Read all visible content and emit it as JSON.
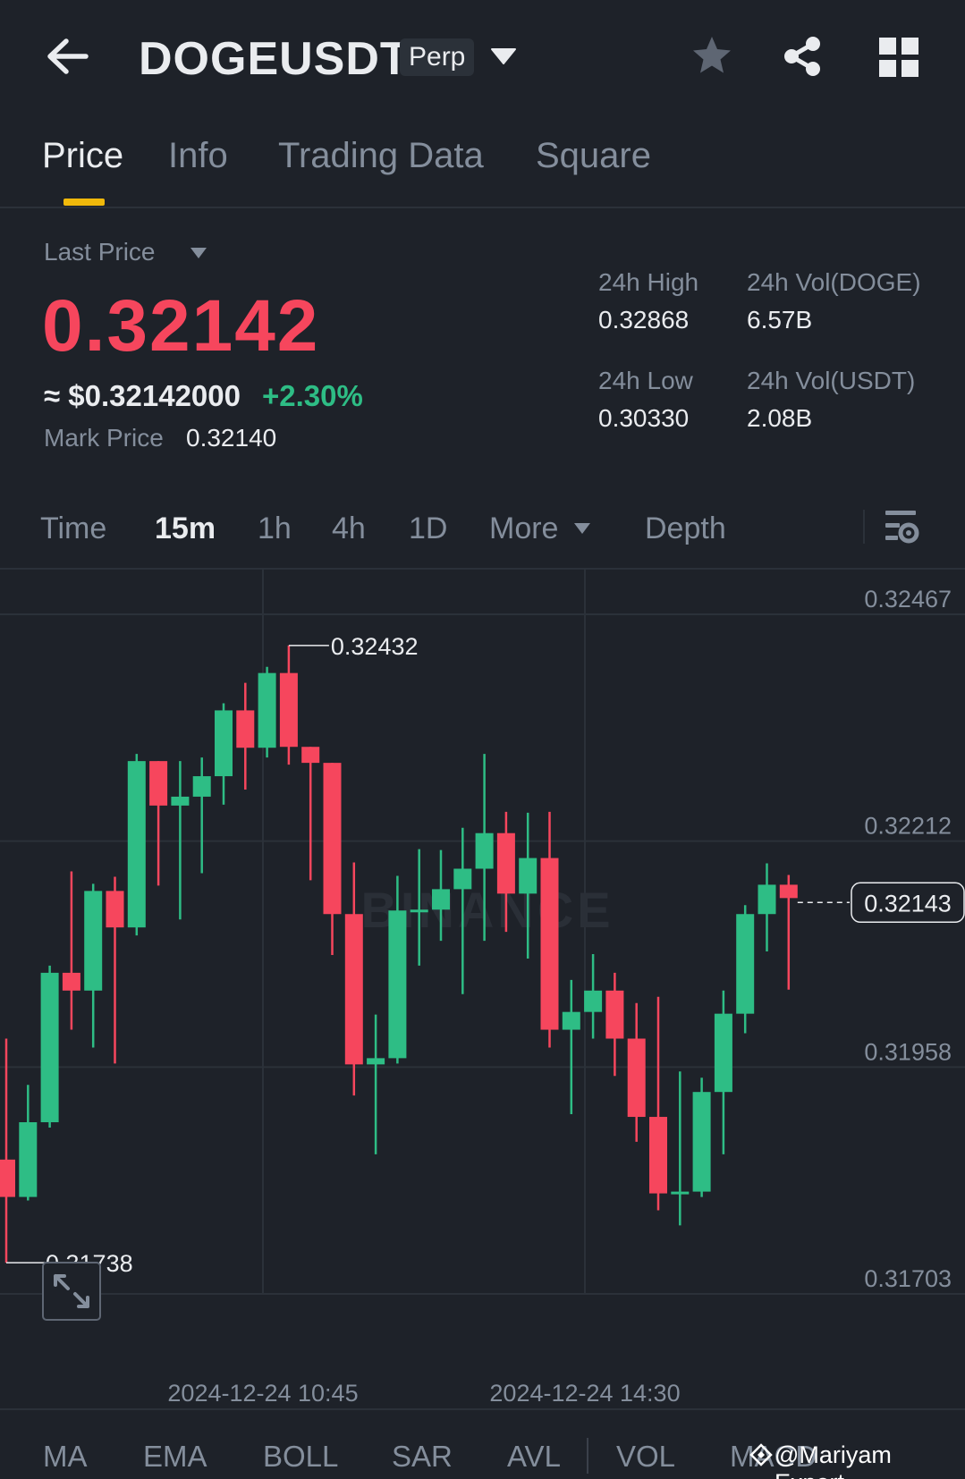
{
  "header": {
    "title": "DOGEUSDT",
    "badge": "Perp"
  },
  "tabs": [
    {
      "label": "Price",
      "active": true
    },
    {
      "label": "Info"
    },
    {
      "label": "Trading Data"
    },
    {
      "label": "Square"
    }
  ],
  "price": {
    "last_price_label": "Last Price",
    "last_price": "0.32142",
    "approx": "≈ $0.32142000",
    "change": "+2.30%",
    "mark_price_label": "Mark Price",
    "mark_price": "0.32140"
  },
  "stats": {
    "high_label": "24h High",
    "high": "0.32868",
    "low_label": "24h Low",
    "low": "0.30330",
    "vol_doge_label": "24h Vol(DOGE)",
    "vol_doge": "6.57B",
    "vol_usdt_label": "24h Vol(USDT)",
    "vol_usdt": "2.08B"
  },
  "intervals": {
    "time": "Time",
    "m15": "15m",
    "h1": "1h",
    "h4": "4h",
    "d1": "1D",
    "more": "More",
    "depth": "Depth"
  },
  "chart": {
    "y_ticks": [
      "0.32467",
      "0.32212",
      "0.31958",
      "0.31703"
    ],
    "x_ticks": [
      "2024-12-24 10:45",
      "2024-12-24 14:30"
    ],
    "high_marker": "0.32432",
    "low_marker": "0.31738",
    "current_price": "0.32143",
    "watermark": "BINANCE"
  },
  "indicators": [
    "MA",
    "EMA",
    "BOLL",
    "SAR",
    "AVL",
    "VOL",
    "MACD"
  ],
  "footer": {
    "user_watermark": "@Mariyam Expert"
  },
  "colors": {
    "up": "#2ebd85",
    "down": "#f6465d",
    "accent": "#f0b90b",
    "background": "#1e2229"
  },
  "chart_data": {
    "type": "candlestick",
    "y_ticks": [
      0.32467,
      0.32212,
      0.31958,
      0.31703
    ],
    "ylim": [
      0.317,
      0.3249
    ],
    "x_ticks": [
      "2024-12-24 10:45",
      "2024-12-24 14:30"
    ],
    "high": 0.32432,
    "low": 0.31738,
    "last": 0.32143,
    "candles": [
      [
        0.31854,
        0.31812,
        0.3199,
        0.31738
      ],
      [
        0.31812,
        0.31896,
        0.31938,
        0.31808
      ],
      [
        0.31896,
        0.32064,
        0.32072,
        0.3189
      ],
      [
        0.32064,
        0.32044,
        0.32178,
        0.32
      ],
      [
        0.32044,
        0.32156,
        0.32164,
        0.3198
      ],
      [
        0.32156,
        0.32115,
        0.32172,
        0.31962
      ],
      [
        0.32115,
        0.32302,
        0.3231,
        0.32106
      ],
      [
        0.32302,
        0.32252,
        0.32302,
        0.32162
      ],
      [
        0.32252,
        0.32262,
        0.32302,
        0.32124
      ],
      [
        0.32262,
        0.32285,
        0.32306,
        0.32176
      ],
      [
        0.32285,
        0.32359,
        0.32367,
        0.32253
      ],
      [
        0.32359,
        0.32317,
        0.3239,
        0.3227
      ],
      [
        0.32317,
        0.32401,
        0.32408,
        0.32306
      ],
      [
        0.32401,
        0.32318,
        0.32432,
        0.32298
      ],
      [
        0.32318,
        0.323,
        0.32318,
        0.32168
      ],
      [
        0.323,
        0.3213,
        0.323,
        0.32084
      ],
      [
        0.3213,
        0.31961,
        0.32188,
        0.31926
      ],
      [
        0.31961,
        0.31968,
        0.32017,
        0.3186
      ],
      [
        0.31968,
        0.32134,
        0.32173,
        0.31962
      ],
      [
        0.32134,
        0.32135,
        0.32203,
        0.32072
      ],
      [
        0.32135,
        0.32158,
        0.32202,
        0.321
      ],
      [
        0.32158,
        0.32181,
        0.32227,
        0.3204
      ],
      [
        0.32181,
        0.32221,
        0.3231,
        0.321
      ],
      [
        0.32221,
        0.32153,
        0.32245,
        0.3211
      ],
      [
        0.32153,
        0.32193,
        0.32244,
        0.3208
      ],
      [
        0.32193,
        0.32,
        0.32245,
        0.3198
      ],
      [
        0.32,
        0.3202,
        0.32056,
        0.31905
      ],
      [
        0.3202,
        0.32044,
        0.32085,
        0.3199
      ],
      [
        0.32044,
        0.3199,
        0.32064,
        0.31948
      ],
      [
        0.3199,
        0.31902,
        0.3203,
        0.31874
      ],
      [
        0.31902,
        0.31816,
        0.32037,
        0.31797
      ],
      [
        0.31816,
        0.31818,
        0.31953,
        0.3178
      ],
      [
        0.31818,
        0.3193,
        0.31946,
        0.31812
      ],
      [
        0.3193,
        0.32018,
        0.32044,
        0.3186
      ],
      [
        0.32018,
        0.3213,
        0.3214,
        0.31996
      ],
      [
        0.3213,
        0.32163,
        0.32187,
        0.32088
      ],
      [
        0.32163,
        0.32148,
        0.32174,
        0.32045
      ]
    ]
  }
}
